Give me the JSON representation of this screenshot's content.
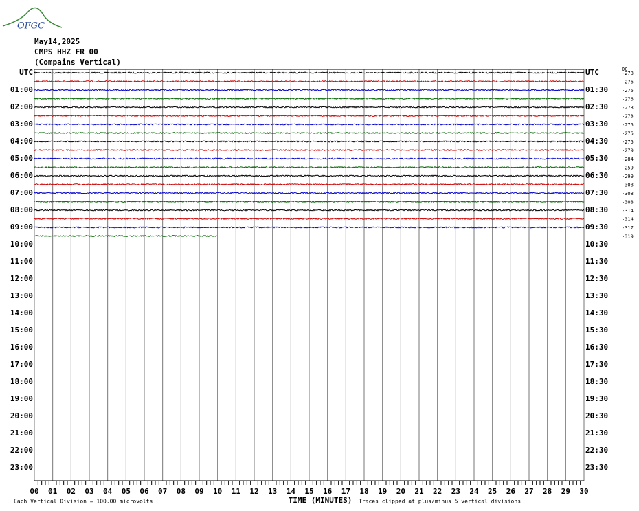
{
  "logo": "OFGC",
  "header": {
    "date": "May14,2025",
    "station": "CMPS HHZ FR 00",
    "description": "(Compains Vertical)"
  },
  "left_labels": [
    "UTC",
    "01:00",
    "02:00",
    "03:00",
    "04:00",
    "05:00",
    "06:00",
    "07:00",
    "08:00",
    "09:00",
    "10:00",
    "11:00",
    "12:00",
    "13:00",
    "14:00",
    "15:00",
    "16:00",
    "17:00",
    "18:00",
    "19:00",
    "20:00",
    "21:00",
    "22:00",
    "23:00"
  ],
  "right_labels": [
    "UTC",
    "01:30",
    "02:30",
    "03:30",
    "04:30",
    "05:30",
    "06:30",
    "07:30",
    "08:30",
    "09:30",
    "10:30",
    "11:30",
    "12:30",
    "13:30",
    "14:30",
    "15:30",
    "16:30",
    "17:30",
    "18:30",
    "19:30",
    "20:30",
    "21:30",
    "22:30",
    "23:30"
  ],
  "dc_header": "DC",
  "traces": [
    {
      "color": "#000000",
      "dc": "-278"
    },
    {
      "color": "#cc0000",
      "dc": "-276"
    },
    {
      "color": "#0000cc",
      "dc": "-275"
    },
    {
      "color": "#006600",
      "dc": "-276"
    },
    {
      "color": "#000000",
      "dc": "-273"
    },
    {
      "color": "#cc0000",
      "dc": "-273"
    },
    {
      "color": "#0000cc",
      "dc": "-275"
    },
    {
      "color": "#006600",
      "dc": "-275"
    },
    {
      "color": "#000000",
      "dc": "-275"
    },
    {
      "color": "#cc0000",
      "dc": "-279"
    },
    {
      "color": "#0000cc",
      "dc": "-284"
    },
    {
      "color": "#006600",
      "dc": "-259"
    },
    {
      "color": "#000000",
      "dc": "-299"
    },
    {
      "color": "#cc0000",
      "dc": "-308"
    },
    {
      "color": "#0000cc",
      "dc": "-308"
    },
    {
      "color": "#006600",
      "dc": "-308"
    },
    {
      "color": "#000000",
      "dc": "-314"
    },
    {
      "color": "#cc0000",
      "dc": "-314"
    },
    {
      "color": "#0000cc",
      "dc": "-317"
    },
    {
      "color": "#006600",
      "dc": "-319"
    }
  ],
  "last_trace_end_minute": 10,
  "x_ticks": [
    "00",
    "01",
    "02",
    "03",
    "04",
    "05",
    "06",
    "07",
    "08",
    "09",
    "10",
    "11",
    "12",
    "13",
    "14",
    "15",
    "16",
    "17",
    "18",
    "19",
    "20",
    "21",
    "22",
    "23",
    "24",
    "25",
    "26",
    "27",
    "28",
    "29",
    "30"
  ],
  "x_label": "TIME (MINUTES)",
  "footer_left": "Each Vertical Division =  100.00 microvolts",
  "footer_right": "Traces clipped at plus/minus 5 vertical divisions"
}
